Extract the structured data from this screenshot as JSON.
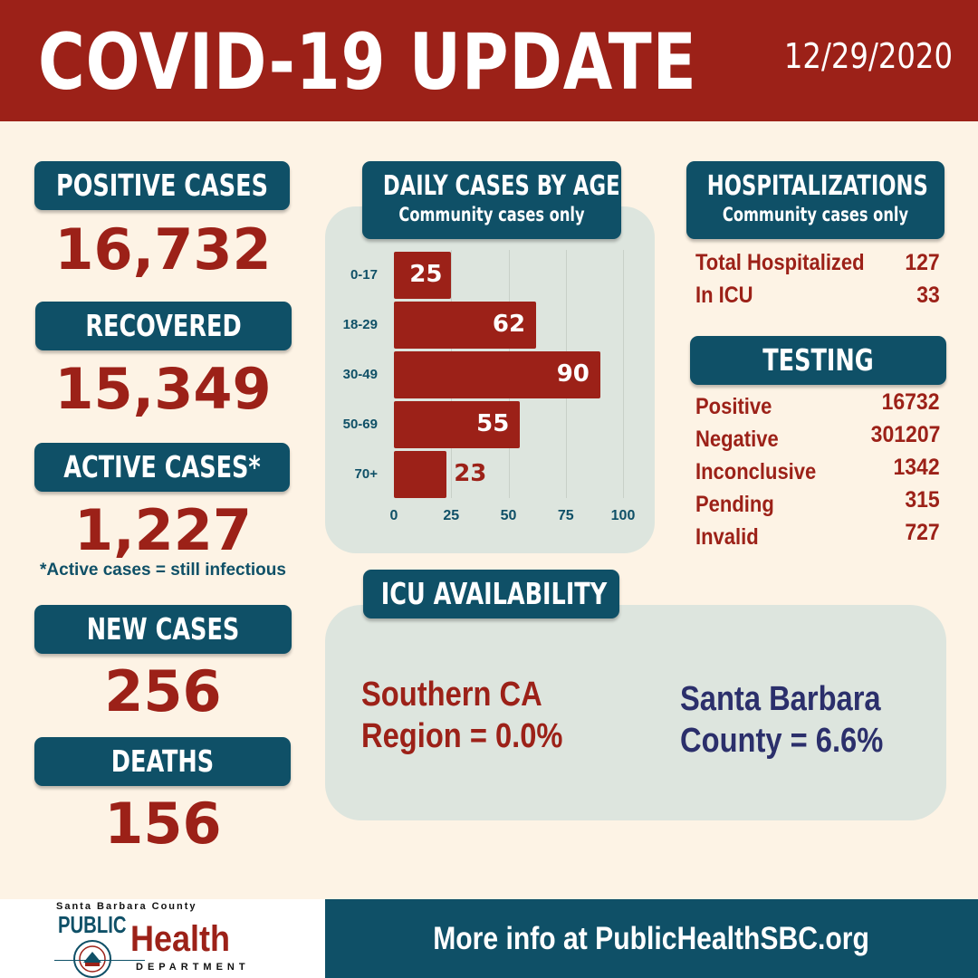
{
  "header": {
    "title": "COVID-19 UPDATE",
    "date": "12/29/2020",
    "bg_color": "#9c2118"
  },
  "left": {
    "positive_cases": {
      "label": "POSITIVE CASES",
      "value": "16,732"
    },
    "recovered": {
      "label": "RECOVERED",
      "value": "15,349"
    },
    "active_cases": {
      "label": "ACTIVE CASES*",
      "value": "1,227",
      "note": "*Active cases = still infectious"
    },
    "new_cases": {
      "label": "NEW CASES",
      "value": "256"
    },
    "deaths": {
      "label": "DEATHS",
      "value": "156"
    }
  },
  "chart_panel": {
    "title": "DAILY CASES BY AGE",
    "subtitle": "Community cases only"
  },
  "chart_data": {
    "type": "bar",
    "orientation": "horizontal",
    "categories": [
      "0-17",
      "18-29",
      "30-49",
      "50-69",
      "70+"
    ],
    "values": [
      25,
      62,
      90,
      55,
      23
    ],
    "value_labels": [
      "25",
      "62",
      "90",
      "55",
      "23"
    ],
    "xlim": [
      0,
      100
    ],
    "xticks": [
      "0",
      "25",
      "50",
      "75",
      "100"
    ],
    "bar_color": "#9c2118",
    "grid": true
  },
  "hospitalizations": {
    "title": "HOSPITALIZATIONS",
    "subtitle": "Community cases only",
    "rows": [
      {
        "label": "Total Hospitalized",
        "value": "127"
      },
      {
        "label": "In ICU",
        "value": "33"
      }
    ]
  },
  "testing": {
    "title": "TESTING",
    "rows": [
      {
        "label": "Positive",
        "value": "16732"
      },
      {
        "label": "Negative",
        "value": "301207"
      },
      {
        "label": "Inconclusive",
        "value": "1342"
      },
      {
        "label": "Pending",
        "value": "315"
      },
      {
        "label": "Invalid",
        "value": "727"
      }
    ]
  },
  "icu": {
    "title": "ICU AVAILABILITY",
    "southern_line1": "Southern CA",
    "southern_line2": "Region = 0.0%",
    "sb_line1": "Santa Barbara",
    "sb_line2": "County = 6.6%",
    "southern_color": "#9c2118",
    "sb_color": "#2b2f6b"
  },
  "footer": {
    "text": "More info at PublicHealthSBC.org",
    "logo_top": "Santa Barbara County",
    "logo_public": "PUBLIC",
    "logo_health": "Health",
    "logo_department": "DEPARTMENT",
    "accent": "#0f5067"
  }
}
